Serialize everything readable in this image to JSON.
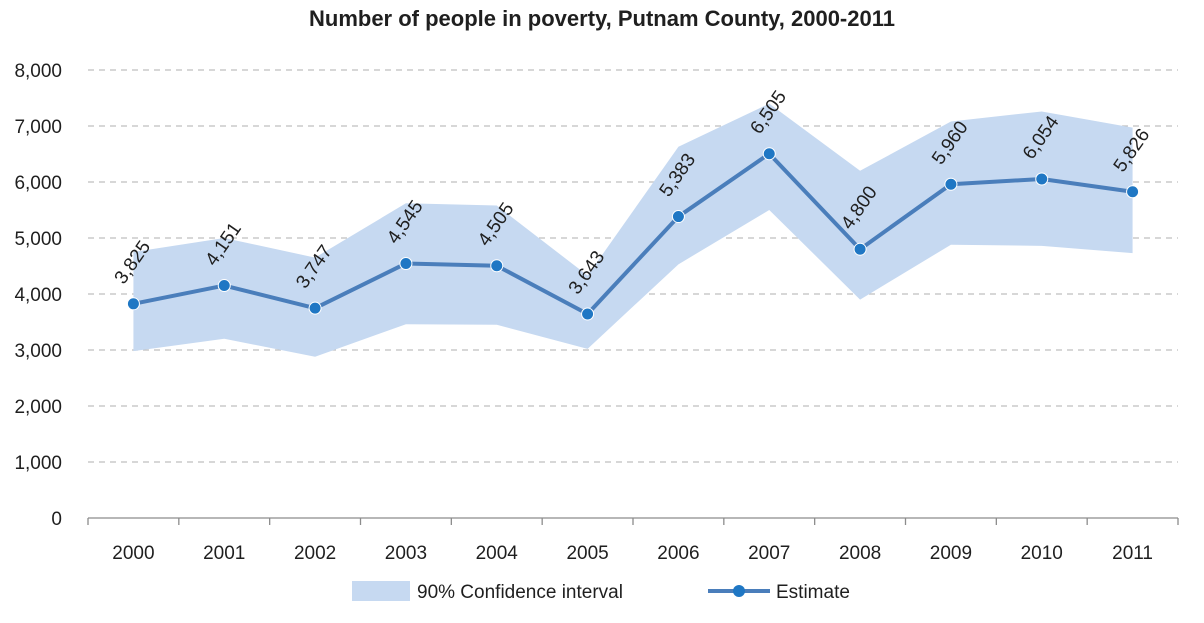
{
  "chart_data": {
    "type": "line",
    "title": "Number of people in poverty, Putnam County, 2000-2011",
    "xlabel": "",
    "ylabel": "",
    "categories": [
      "2000",
      "2001",
      "2002",
      "2003",
      "2004",
      "2005",
      "2006",
      "2007",
      "2008",
      "2009",
      "2010",
      "2011"
    ],
    "ylim": [
      0,
      8000
    ],
    "yticks": [
      0,
      1000,
      2000,
      3000,
      4000,
      5000,
      6000,
      7000,
      8000
    ],
    "ytick_labels": [
      "0",
      "1,000",
      "2,000",
      "3,000",
      "4,000",
      "5,000",
      "6,000",
      "7,000",
      "8,000"
    ],
    "grid": "horizontal dashed",
    "legend_position": "bottom",
    "series": [
      {
        "name": "Estimate",
        "type": "line",
        "color": "#4a7ebb",
        "marker_color": "#1f77c4",
        "values": [
          3825,
          4151,
          3747,
          4545,
          4505,
          3643,
          5383,
          6505,
          4800,
          5960,
          6054,
          5826
        ],
        "labels": [
          "3,825",
          "4,151",
          "3,747",
          "4,545",
          "4,505",
          "3,643",
          "5,383",
          "6,505",
          "4,800",
          "5,960",
          "6,054",
          "5,826"
        ]
      },
      {
        "name": "90% Confidence interval",
        "type": "area-band",
        "color": "#c6d9f1",
        "lower": [
          2980,
          3200,
          2880,
          3460,
          3450,
          3020,
          4530,
          5500,
          3900,
          4880,
          4860,
          4730
        ],
        "upper": [
          4750,
          5000,
          4650,
          5620,
          5580,
          4330,
          6630,
          7400,
          6200,
          7080,
          7260,
          6970
        ]
      }
    ]
  }
}
